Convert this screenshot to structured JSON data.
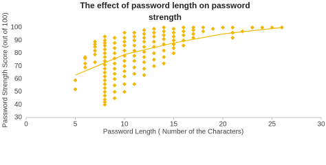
{
  "chart_data": {
    "type": "scatter",
    "title": "The effect of password length on password",
    "title_line2": "strength",
    "x_label": "Password Length ( Number of the Characters)",
    "y_label": "Password Strength Score (out of 100)",
    "xlim": [
      0,
      30
    ],
    "xticks": [
      0,
      5,
      10,
      15,
      20,
      25,
      30
    ],
    "ylim": [
      30,
      100
    ],
    "yticks": [
      30,
      40,
      50,
      60,
      70,
      80,
      90,
      100
    ],
    "grid": false,
    "series": [
      {
        "color": "#f2b705",
        "x": [
          5,
          5,
          6,
          6,
          6,
          6,
          7,
          7,
          7,
          7,
          7,
          7,
          8,
          8,
          8,
          8,
          8,
          8,
          8,
          8,
          8,
          8,
          8,
          8,
          8,
          8,
          8,
          8,
          8,
          8,
          8,
          8,
          9,
          9,
          9,
          9,
          9,
          9,
          9,
          9,
          9,
          9,
          9,
          9,
          10,
          10,
          10,
          10,
          10,
          10,
          10,
          10,
          10,
          10,
          10,
          10,
          11,
          11,
          11,
          11,
          11,
          11,
          11,
          11,
          11,
          11,
          12,
          12,
          12,
          12,
          12,
          12,
          12,
          12,
          12,
          12,
          13,
          13,
          13,
          13,
          13,
          13,
          13,
          13,
          14,
          14,
          14,
          14,
          14,
          14,
          14,
          14,
          15,
          15,
          15,
          15,
          15,
          15,
          15,
          16,
          16,
          16,
          16,
          16,
          17,
          17,
          17,
          17,
          18,
          18,
          19,
          20,
          21,
          21,
          21,
          22,
          23,
          24,
          25,
          26
        ],
        "values": [
          52,
          59,
          69,
          72,
          76,
          77,
          73,
          79,
          82,
          85,
          87,
          89,
          40,
          42,
          44,
          47,
          50,
          53,
          56,
          59,
          62,
          65,
          68,
          71,
          74,
          77,
          80,
          83,
          86,
          88,
          90,
          93,
          45,
          50,
          55,
          60,
          64,
          68,
          72,
          76,
          80,
          84,
          88,
          92,
          50,
          56,
          62,
          66,
          70,
          74,
          78,
          82,
          86,
          89,
          92,
          96,
          56,
          64,
          69,
          74,
          78,
          82,
          86,
          90,
          93,
          96,
          63,
          68,
          73,
          77,
          81,
          85,
          89,
          92,
          95,
          98,
          70,
          75,
          80,
          85,
          89,
          93,
          96,
          99,
          72,
          77,
          82,
          87,
          91,
          94,
          97,
          100,
          80,
          84,
          87,
          90,
          93,
          96,
          99,
          86,
          90,
          94,
          97,
          100,
          92,
          95,
          98,
          100,
          97,
          100,
          99,
          100,
          92,
          96,
          100,
          97,
          100,
          100,
          100,
          100
        ]
      }
    ],
    "trendline": {
      "color": "#f2b705",
      "x": [
        5,
        10,
        15,
        20,
        26
      ],
      "values": [
        63,
        79,
        88,
        95,
        100
      ]
    }
  }
}
